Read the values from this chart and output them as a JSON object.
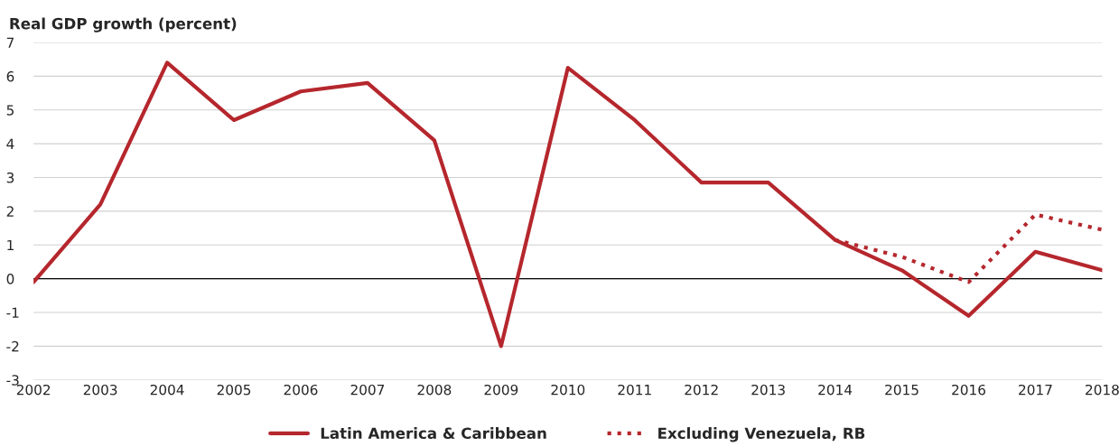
{
  "chart_data": {
    "type": "line",
    "title": "Real GDP growth (percent)",
    "x": [
      2002,
      2003,
      2004,
      2005,
      2006,
      2007,
      2008,
      2009,
      2010,
      2011,
      2012,
      2013,
      2014,
      2015,
      2016,
      2017,
      2018
    ],
    "series": [
      {
        "name": "Latin America & Caribbean",
        "color": "#b5272d",
        "line_style": "solid",
        "values": [
          -0.1,
          2.2,
          6.4,
          4.7,
          5.55,
          5.8,
          4.1,
          -2.0,
          6.25,
          4.7,
          2.85,
          2.85,
          1.15,
          0.25,
          -1.1,
          0.8,
          0.25
        ]
      },
      {
        "name": "Excluding Venezuela, RB",
        "color": "#b5272d",
        "line_style": "dotted",
        "values": [
          null,
          null,
          null,
          null,
          null,
          null,
          null,
          null,
          null,
          null,
          null,
          null,
          1.15,
          0.65,
          -0.1,
          1.9,
          1.45
        ]
      }
    ],
    "xlim": [
      2002,
      2018
    ],
    "xticks": [
      2002,
      2003,
      2004,
      2005,
      2006,
      2007,
      2008,
      2009,
      2010,
      2011,
      2012,
      2013,
      2014,
      2015,
      2016,
      2017,
      2018
    ],
    "ylim": [
      -3,
      7
    ],
    "yticks": [
      -3,
      -2,
      -1,
      0,
      1,
      2,
      3,
      4,
      5,
      6,
      7
    ],
    "ref_lines": [
      {
        "axis": "y",
        "value": 0,
        "color": "#000000"
      }
    ],
    "grid": "y",
    "legend": "bottom",
    "marker": "none"
  }
}
